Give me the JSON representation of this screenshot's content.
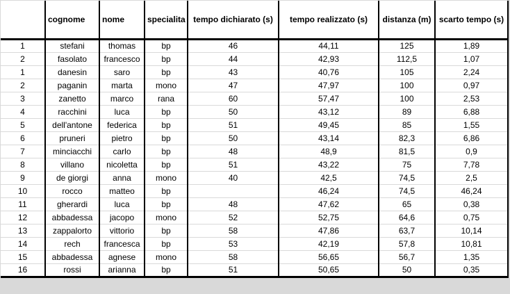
{
  "colors": {
    "border": "#000000",
    "gridline": "#d9d9d9",
    "text": "#000000",
    "background": "#ffffff"
  },
  "table": {
    "columns": [
      {
        "key": "rank",
        "label": "",
        "width": 64,
        "align": "center"
      },
      {
        "key": "cognome",
        "label": "cognome",
        "width": 78,
        "align": "left"
      },
      {
        "key": "nome",
        "label": "nome",
        "width": 65,
        "align": "left"
      },
      {
        "key": "specialita",
        "label": "specialita",
        "width": 62,
        "align": "left"
      },
      {
        "key": "tempo_dichiarato",
        "label": "tempo dichiarato (s)",
        "width": 131,
        "align": "center"
      },
      {
        "key": "tempo_realizzato",
        "label": "tempo realizzato (s)",
        "width": 144,
        "align": "center"
      },
      {
        "key": "distanza",
        "label": "distanza (m)",
        "width": 81,
        "align": "center"
      },
      {
        "key": "scarto_tempo",
        "label": "scarto tempo (s)",
        "width": 105,
        "align": "center"
      }
    ],
    "rows": [
      {
        "rank": "1",
        "cognome": "stefani",
        "nome": "thomas",
        "specialita": "bp",
        "tempo_dichiarato": "46",
        "tempo_realizzato": "44,11",
        "distanza": "125",
        "scarto_tempo": "1,89"
      },
      {
        "rank": "2",
        "cognome": "fasolato",
        "nome": "francesco",
        "specialita": "bp",
        "tempo_dichiarato": "44",
        "tempo_realizzato": "42,93",
        "distanza": "112,5",
        "scarto_tempo": "1,07"
      },
      {
        "rank": "1",
        "cognome": "danesin",
        "nome": "saro",
        "specialita": "bp",
        "tempo_dichiarato": "43",
        "tempo_realizzato": "40,76",
        "distanza": "105",
        "scarto_tempo": "2,24"
      },
      {
        "rank": "2",
        "cognome": "paganin",
        "nome": "marta",
        "specialita": "mono",
        "tempo_dichiarato": "47",
        "tempo_realizzato": "47,97",
        "distanza": "100",
        "scarto_tempo": "0,97"
      },
      {
        "rank": "3",
        "cognome": "zanetto",
        "nome": "marco",
        "specialita": "rana",
        "tempo_dichiarato": "60",
        "tempo_realizzato": "57,47",
        "distanza": "100",
        "scarto_tempo": "2,53"
      },
      {
        "rank": "4",
        "cognome": "racchini",
        "nome": "luca",
        "specialita": "bp",
        "tempo_dichiarato": "50",
        "tempo_realizzato": "43,12",
        "distanza": "89",
        "scarto_tempo": "6,88"
      },
      {
        "rank": "5",
        "cognome": "dell'antone",
        "nome": "federica",
        "specialita": "bp",
        "tempo_dichiarato": "51",
        "tempo_realizzato": "49,45",
        "distanza": "85",
        "scarto_tempo": "1,55"
      },
      {
        "rank": "6",
        "cognome": "pruneri",
        "nome": "pietro",
        "specialita": "bp",
        "tempo_dichiarato": "50",
        "tempo_realizzato": "43,14",
        "distanza": "82,3",
        "scarto_tempo": "6,86"
      },
      {
        "rank": "7",
        "cognome": "minciacchi",
        "nome": "carlo",
        "specialita": "bp",
        "tempo_dichiarato": "48",
        "tempo_realizzato": "48,9",
        "distanza": "81,5",
        "scarto_tempo": "0,9"
      },
      {
        "rank": "8",
        "cognome": "villano",
        "nome": "nicoletta",
        "specialita": "bp",
        "tempo_dichiarato": "51",
        "tempo_realizzato": "43,22",
        "distanza": "75",
        "scarto_tempo": "7,78"
      },
      {
        "rank": "9",
        "cognome": "de giorgi",
        "nome": "anna",
        "specialita": "mono",
        "tempo_dichiarato": "40",
        "tempo_realizzato": "42,5",
        "distanza": "74,5",
        "scarto_tempo": "2,5"
      },
      {
        "rank": "10",
        "cognome": "rocco",
        "nome": "matteo",
        "specialita": "bp",
        "tempo_dichiarato": "",
        "tempo_realizzato": "46,24",
        "distanza": "74,5",
        "scarto_tempo": "46,24"
      },
      {
        "rank": "11",
        "cognome": "gherardi",
        "nome": "luca",
        "specialita": "bp",
        "tempo_dichiarato": "48",
        "tempo_realizzato": "47,62",
        "distanza": "65",
        "scarto_tempo": "0,38"
      },
      {
        "rank": "12",
        "cognome": "abbadessa",
        "nome": "jacopo",
        "specialita": "mono",
        "tempo_dichiarato": "52",
        "tempo_realizzato": "52,75",
        "distanza": "64,6",
        "scarto_tempo": "0,75"
      },
      {
        "rank": "13",
        "cognome": "zappalorto",
        "nome": "vittorio",
        "specialita": "bp",
        "tempo_dichiarato": "58",
        "tempo_realizzato": "47,86",
        "distanza": "63,7",
        "scarto_tempo": "10,14"
      },
      {
        "rank": "14",
        "cognome": "rech",
        "nome": "francesca",
        "specialita": "bp",
        "tempo_dichiarato": "53",
        "tempo_realizzato": "42,19",
        "distanza": "57,8",
        "scarto_tempo": "10,81"
      },
      {
        "rank": "15",
        "cognome": "abbadessa",
        "nome": "agnese",
        "specialita": "mono",
        "tempo_dichiarato": "58",
        "tempo_realizzato": "56,65",
        "distanza": "56,7",
        "scarto_tempo": "1,35"
      },
      {
        "rank": "16",
        "cognome": "rossi",
        "nome": "arianna",
        "specialita": "bp",
        "tempo_dichiarato": "51",
        "tempo_realizzato": "50,65",
        "distanza": "50",
        "scarto_tempo": "0,35"
      }
    ]
  }
}
